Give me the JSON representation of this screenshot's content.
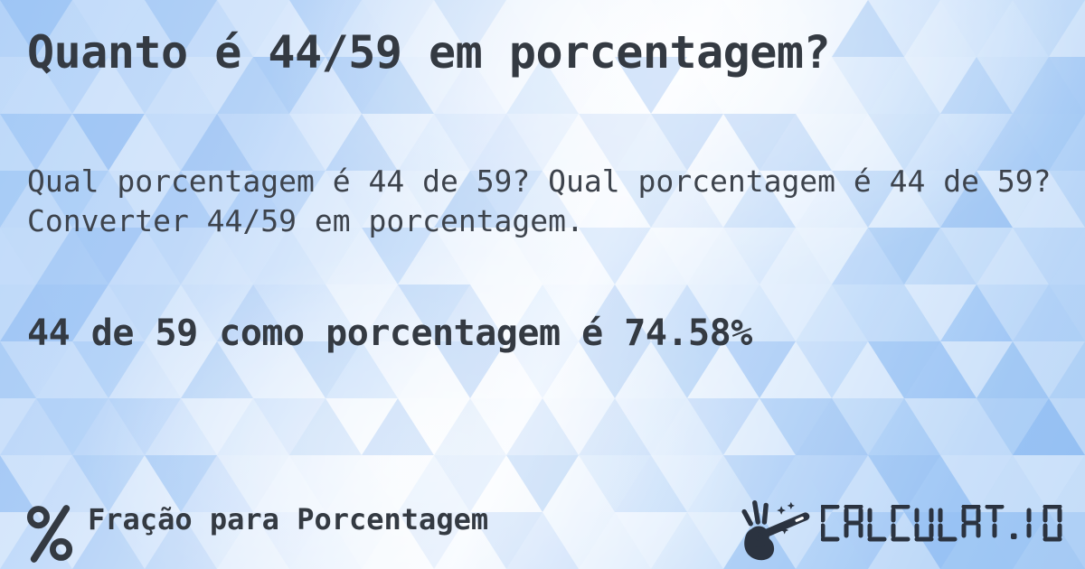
{
  "card": {
    "title": "Quanto é 44/59 em porcentagem?",
    "description": "Qual porcentagem é 44 de 59? Qual porcentagem é 44 de 59? Converter 44/59 em porcentagem.",
    "answer": "44 de 59 como porcentagem é 74.58%"
  },
  "footer": {
    "category": {
      "icon": "percent-icon",
      "label": "Fração para Porcentagem"
    },
    "brand": {
      "icon": "magic-wand-hand-icon",
      "text": "CALCULAT.IO"
    }
  },
  "colors": {
    "text_strong": "#343a42",
    "text_body": "#3d434c",
    "logo_color": "#2b3340",
    "background_left": "#a8ccf7",
    "background_center": "#f6faff",
    "background_right": "#9cc5f4",
    "triangle_white": "#ffffff",
    "triangle_blue": "#7fb0ee"
  }
}
